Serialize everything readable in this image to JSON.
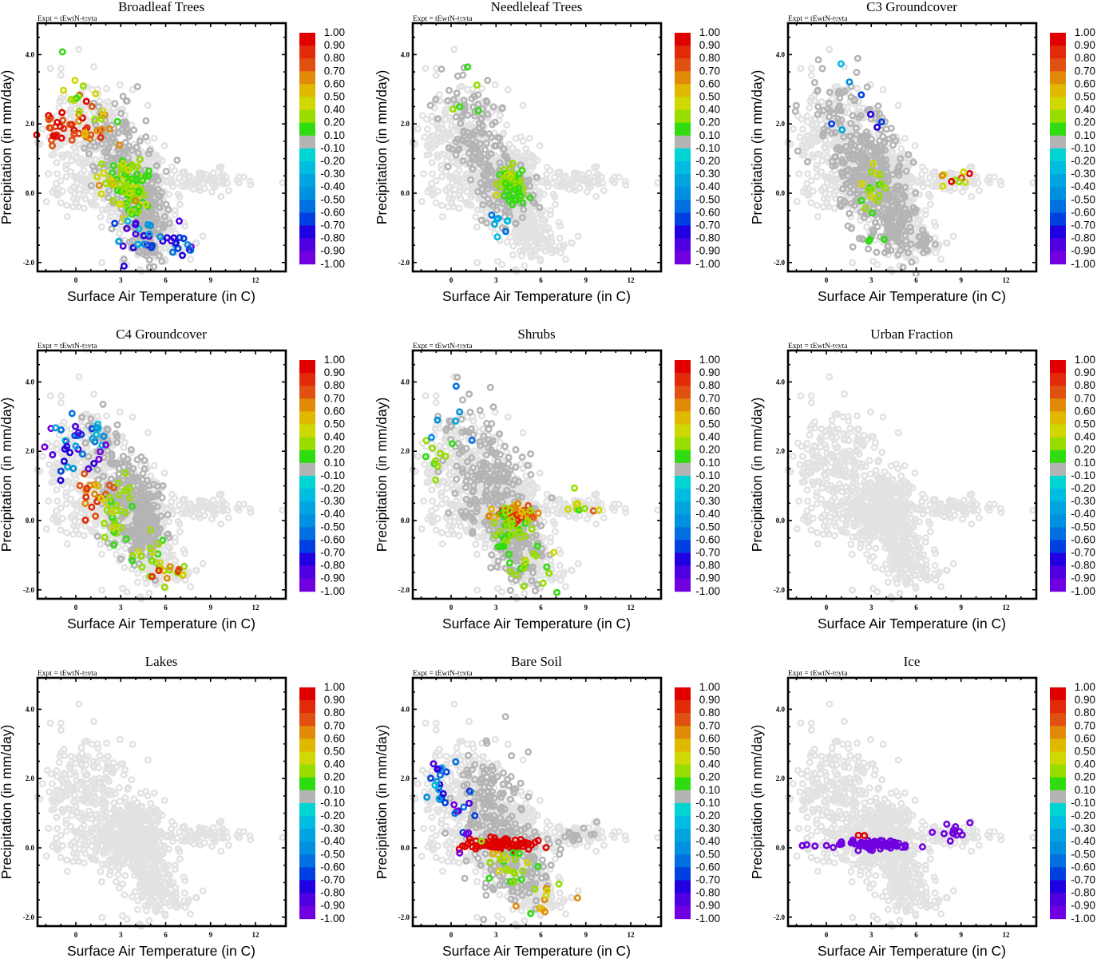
{
  "figure": {
    "expt_label": "Expt = tEwtN-tevta",
    "xlabel": "Surface Air Temperature (in C)",
    "ylabel": "Precipitation (in mm/day)"
  },
  "chart_data": {
    "type": "scatter",
    "xlabel": "Surface Air Temperature (in C)",
    "ylabel": "Precipitation (in mm/day)",
    "xlim": [
      -3.4,
      13.8
    ],
    "ylim": [
      -2.2,
      4.9
    ],
    "x_ticks": [
      0,
      3,
      6,
      9,
      12
    ],
    "x_tick_labels": [
      "0",
      "3",
      "6",
      "9",
      "12"
    ],
    "y_ticks": [
      -2.0,
      0.0,
      2.0,
      4.0
    ],
    "y_tick_labels": [
      "-2.0",
      "0.0",
      "2.0",
      "4.0"
    ],
    "annotation": "Expt = tEwtN-tevta",
    "grid": false,
    "colorbar": {
      "labels": [
        "1.00",
        "0.90",
        "0.80",
        "0.70",
        "0.60",
        "0.50",
        "0.40",
        "0.20",
        "0.10",
        "-0.10",
        "-0.20",
        "-0.30",
        "-0.40",
        "-0.50",
        "-0.60",
        "-0.70",
        "-0.80",
        "-0.90",
        "-1.00"
      ],
      "colors": [
        "#e00000",
        "#e02a08",
        "#e05010",
        "#e08a08",
        "#e0b800",
        "#cfd800",
        "#98dc00",
        "#30dc10",
        "#b4b4b4",
        "#00d4d4",
        "#00bce0",
        "#00a4e0",
        "#0090e0",
        "#0070e0",
        "#0040e0",
        "#2000e0",
        "#5000e0",
        "#7000e0"
      ],
      "placement": "right"
    },
    "base_cloud": {
      "description": "common cloud of grid-cell points shown in light gray in every panel",
      "color": "#e2e2e2",
      "clusters": [
        {
          "cx": 3.6,
          "cy": 0.3,
          "sx": 1.2,
          "sy": 0.55,
          "n": 420
        },
        {
          "cx": 1.2,
          "cy": 1.6,
          "sx": 1.2,
          "sy": 0.7,
          "n": 180
        },
        {
          "cx": -0.8,
          "cy": 1.9,
          "sx": 0.7,
          "sy": 0.5,
          "n": 40
        },
        {
          "cx": 5.0,
          "cy": -0.9,
          "sx": 0.9,
          "sy": 0.55,
          "n": 140
        },
        {
          "cx": 8.3,
          "cy": 0.35,
          "sx": 1.5,
          "sy": 0.17,
          "n": 70
        },
        {
          "cx": 6.5,
          "cy": -1.4,
          "sx": 0.9,
          "sy": 0.25,
          "n": 40
        },
        {
          "cx": 0.0,
          "cy": 0.1,
          "sx": 0.8,
          "sy": 0.35,
          "n": 40
        }
      ],
      "fixed_points": [
        [
          0.2,
          4.15
        ],
        [
          0.7,
          4.95
        ],
        [
          1.2,
          3.65
        ],
        [
          -1.7,
          3.6
        ],
        [
          -1.0,
          3.6
        ],
        [
          -1.0,
          3.4
        ],
        [
          4.3,
          -2.2
        ],
        [
          4.9,
          -2.1
        ],
        [
          10.9,
          0.3
        ],
        [
          13.8,
          0.3
        ]
      ]
    },
    "panels": [
      {
        "title": "Broadleaf Trees",
        "gray_clusters": [
          {
            "cx": 2.6,
            "cy": 1.2,
            "sx": 0.9,
            "sy": 0.7,
            "n": 120
          },
          {
            "cx": 4.6,
            "cy": -0.5,
            "sx": 0.8,
            "sy": 0.6,
            "n": 160
          },
          {
            "cx": 5.0,
            "cy": -1.6,
            "sx": 0.4,
            "sy": 0.3,
            "n": 20
          }
        ],
        "colored_clusters": [
          {
            "cx": -1.2,
            "cy": 1.9,
            "sx": 0.6,
            "sy": 0.35,
            "n": 22,
            "v": [
              0.7,
              1.0
            ]
          },
          {
            "cx": 1.0,
            "cy": 2.0,
            "sx": 0.6,
            "sy": 0.4,
            "n": 24,
            "v": [
              0.6,
              1.0
            ]
          },
          {
            "cx": 0.2,
            "cy": 2.6,
            "sx": 1.0,
            "sy": 0.6,
            "n": 16,
            "v": [
              0.1,
              0.6
            ]
          },
          {
            "cx": 3.8,
            "cy": 0.1,
            "sx": 0.5,
            "sy": 0.4,
            "n": 90,
            "v": [
              0.1,
              0.5
            ]
          },
          {
            "cx": 2.5,
            "cy": 0.6,
            "sx": 0.6,
            "sy": 0.5,
            "n": 20,
            "v": [
              0.1,
              0.7
            ]
          },
          {
            "cx": 4.4,
            "cy": -1.2,
            "sx": 1.0,
            "sy": 0.3,
            "n": 24,
            "v": [
              -0.9,
              -0.2
            ]
          },
          {
            "cx": 6.8,
            "cy": -1.5,
            "sx": 0.6,
            "sy": 0.2,
            "n": 14,
            "v": [
              -1.0,
              -0.3
            ]
          }
        ]
      },
      {
        "title": "Needleleaf Trees",
        "gray_clusters": [
          {
            "cx": 1.6,
            "cy": 1.7,
            "sx": 0.9,
            "sy": 0.6,
            "n": 90
          },
          {
            "cx": 3.7,
            "cy": 0.2,
            "sx": 0.8,
            "sy": 0.45,
            "n": 140
          },
          {
            "cx": 0.5,
            "cy": 2.9,
            "sx": 1.0,
            "sy": 0.5,
            "n": 14
          }
        ],
        "colored_clusters": [
          {
            "cx": 4.0,
            "cy": 0.3,
            "sx": 0.45,
            "sy": 0.2,
            "n": 60,
            "v": [
              0.1,
              0.45
            ]
          },
          {
            "cx": 4.3,
            "cy": -0.1,
            "sx": 0.4,
            "sy": 0.15,
            "n": 14,
            "v": [
              0.1,
              0.2
            ]
          },
          {
            "cx": 1.0,
            "cy": 2.9,
            "sx": 0.6,
            "sy": 0.4,
            "n": 5,
            "v": [
              0.1,
              0.3
            ]
          },
          {
            "cx": 3.4,
            "cy": -0.8,
            "sx": 0.5,
            "sy": 0.3,
            "n": 8,
            "v": [
              -0.6,
              -0.2
            ]
          }
        ]
      },
      {
        "title": "C3 Groundcover",
        "gray_clusters": [
          {
            "cx": 2.8,
            "cy": 0.6,
            "sx": 1.1,
            "sy": 0.9,
            "n": 260
          },
          {
            "cx": 4.5,
            "cy": -0.6,
            "sx": 0.8,
            "sy": 0.5,
            "n": 120
          },
          {
            "cx": 0.5,
            "cy": 2.3,
            "sx": 0.9,
            "sy": 0.7,
            "n": 50
          },
          {
            "cx": 6.2,
            "cy": -1.4,
            "sx": 0.8,
            "sy": 0.3,
            "n": 30
          }
        ],
        "colored_clusters": [
          {
            "cx": 3.2,
            "cy": 0.1,
            "sx": 0.6,
            "sy": 0.35,
            "n": 18,
            "v": [
              0.1,
              0.5
            ]
          },
          {
            "cx": 8.6,
            "cy": 0.45,
            "sx": 0.6,
            "sy": 0.15,
            "n": 10,
            "v": [
              0.2,
              1.0
            ]
          },
          {
            "cx": 1.8,
            "cy": 2.5,
            "sx": 1.2,
            "sy": 0.6,
            "n": 8,
            "v": [
              -0.8,
              -0.2
            ]
          },
          {
            "cx": 3.6,
            "cy": -1.2,
            "sx": 0.5,
            "sy": 0.3,
            "n": 4,
            "v": [
              0.1,
              0.2
            ]
          }
        ]
      },
      {
        "title": "C4 Groundcover",
        "gray_clusters": [
          {
            "cx": 3.4,
            "cy": 0.8,
            "sx": 0.9,
            "sy": 0.8,
            "n": 160
          },
          {
            "cx": 4.6,
            "cy": -0.2,
            "sx": 0.6,
            "sy": 0.5,
            "n": 160
          },
          {
            "cx": 1.5,
            "cy": 2.2,
            "sx": 0.7,
            "sy": 0.5,
            "n": 30
          }
        ],
        "colored_clusters": [
          {
            "cx": -0.6,
            "cy": 2.1,
            "sx": 0.6,
            "sy": 0.5,
            "n": 22,
            "v": [
              -1.0,
              -0.3
            ]
          },
          {
            "cx": 1.2,
            "cy": 2.3,
            "sx": 0.5,
            "sy": 0.5,
            "n": 16,
            "v": [
              -1.0,
              -0.2
            ]
          },
          {
            "cx": 1.3,
            "cy": 0.9,
            "sx": 0.8,
            "sy": 0.4,
            "n": 18,
            "v": [
              0.5,
              0.9
            ]
          },
          {
            "cx": 2.8,
            "cy": 0.2,
            "sx": 0.6,
            "sy": 0.4,
            "n": 30,
            "v": [
              0.1,
              0.5
            ]
          },
          {
            "cx": 4.8,
            "cy": -0.9,
            "sx": 0.9,
            "sy": 0.3,
            "n": 18,
            "v": [
              0.1,
              0.6
            ]
          },
          {
            "cx": 6.6,
            "cy": -1.45,
            "sx": 0.8,
            "sy": 0.2,
            "n": 14,
            "v": [
              0.2,
              0.9
            ]
          }
        ]
      },
      {
        "title": "Shrubs",
        "gray_clusters": [
          {
            "cx": 2.6,
            "cy": 1.0,
            "sx": 1.0,
            "sy": 0.8,
            "n": 160
          },
          {
            "cx": 4.3,
            "cy": -0.6,
            "sx": 0.9,
            "sy": 0.6,
            "n": 130
          },
          {
            "cx": 0.8,
            "cy": 2.4,
            "sx": 1.0,
            "sy": 0.6,
            "n": 30
          }
        ],
        "colored_clusters": [
          {
            "cx": 4.2,
            "cy": 0.25,
            "sx": 0.7,
            "sy": 0.12,
            "n": 45,
            "v": [
              0.5,
              0.9
            ]
          },
          {
            "cx": 3.9,
            "cy": -0.35,
            "sx": 0.7,
            "sy": 0.35,
            "n": 40,
            "v": [
              0.1,
              0.3
            ]
          },
          {
            "cx": 8.5,
            "cy": 0.45,
            "sx": 0.7,
            "sy": 0.15,
            "n": 10,
            "v": [
              0.1,
              0.8
            ]
          },
          {
            "cx": 5.8,
            "cy": -1.3,
            "sx": 1.2,
            "sy": 0.3,
            "n": 16,
            "v": [
              0.1,
              0.5
            ]
          },
          {
            "cx": -0.5,
            "cy": 2.0,
            "sx": 0.8,
            "sy": 0.6,
            "n": 10,
            "v": [
              0.1,
              0.4
            ]
          },
          {
            "cx": 0.5,
            "cy": 2.7,
            "sx": 1.0,
            "sy": 0.5,
            "n": 6,
            "v": [
              -0.6,
              -0.3
            ]
          }
        ]
      },
      {
        "title": "Urban Fraction",
        "gray_clusters": [],
        "colored_clusters": []
      },
      {
        "title": "Lakes",
        "gray_clusters": [],
        "colored_clusters": []
      },
      {
        "title": "Bare Soil",
        "gray_clusters": [
          {
            "cx": 2.6,
            "cy": 1.2,
            "sx": 1.0,
            "sy": 0.8,
            "n": 150
          },
          {
            "cx": 4.4,
            "cy": -0.5,
            "sx": 0.9,
            "sy": 0.6,
            "n": 140
          },
          {
            "cx": 8.3,
            "cy": 0.35,
            "sx": 0.8,
            "sy": 0.15,
            "n": 16
          }
        ],
        "colored_clusters": [
          {
            "cx": 3.3,
            "cy": 0.1,
            "sx": 1.2,
            "sy": 0.08,
            "n": 80,
            "v": [
              0.9,
              1.0
            ]
          },
          {
            "cx": -0.8,
            "cy": 2.0,
            "sx": 0.6,
            "sy": 0.4,
            "n": 18,
            "v": [
              -1.0,
              -0.2
            ]
          },
          {
            "cx": 0.6,
            "cy": 1.0,
            "sx": 0.6,
            "sy": 0.5,
            "n": 14,
            "v": [
              -1.0,
              -0.5
            ]
          },
          {
            "cx": 3.8,
            "cy": -0.5,
            "sx": 0.8,
            "sy": 0.3,
            "n": 26,
            "v": [
              0.1,
              0.6
            ]
          },
          {
            "cx": 5.6,
            "cy": -1.3,
            "sx": 0.9,
            "sy": 0.3,
            "n": 12,
            "v": [
              0.1,
              0.7
            ]
          }
        ]
      },
      {
        "title": "Ice",
        "gray_clusters": [],
        "colored_clusters": [
          {
            "cx": 3.2,
            "cy": 0.08,
            "sx": 1.2,
            "sy": 0.07,
            "n": 70,
            "v": [
              -1.0,
              -0.9
            ]
          },
          {
            "cx": 8.4,
            "cy": 0.45,
            "sx": 0.6,
            "sy": 0.15,
            "n": 12,
            "v": [
              -1.0,
              -0.9
            ]
          },
          {
            "cx": -1.5,
            "cy": 0.05,
            "sx": 1.0,
            "sy": 0.03,
            "n": 4,
            "v": [
              -1.0,
              -0.9
            ]
          },
          {
            "cx": 1.5,
            "cy": 0.35,
            "sx": 1.5,
            "sy": 0.01,
            "n": 2,
            "v": [
              0.95,
              1.0
            ]
          }
        ]
      }
    ]
  }
}
